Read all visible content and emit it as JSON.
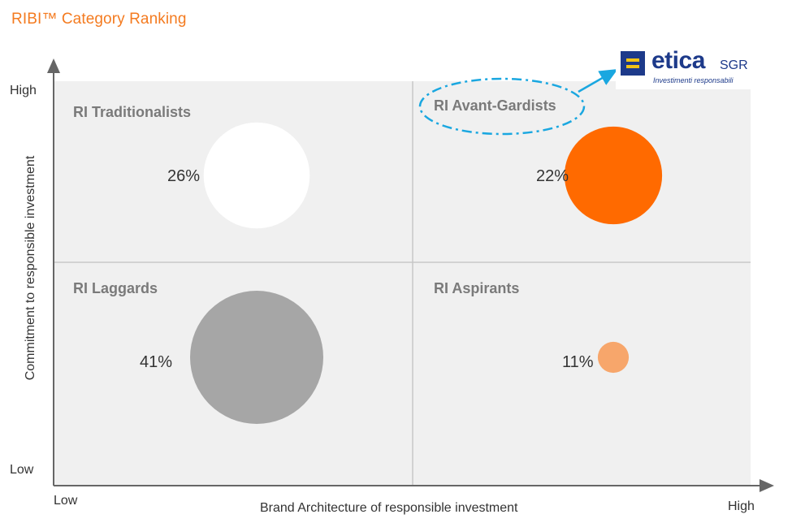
{
  "title": "RIBI™ Category Ranking",
  "colors": {
    "title": "#f47b20",
    "panel": "#f0f0f0",
    "divider": "#c8c8c8",
    "axis": "#666666",
    "highlight": "#1aa7e0"
  },
  "chart_data": {
    "type": "scatter",
    "xlabel": "Brand Architecture of responsible investment",
    "ylabel": "Commitment to responsible investment",
    "x_ticks": [
      "Low",
      "High"
    ],
    "y_ticks": [
      "Low",
      "High"
    ],
    "quadrants": [
      {
        "name": "RI Traditionalists",
        "x": "Low",
        "y": "High",
        "value": 26,
        "label": "26%",
        "color": "#ffffff"
      },
      {
        "name": "RI Avant-Gardists",
        "x": "High",
        "y": "High",
        "value": 22,
        "label": "22%",
        "color": "#ff6a00"
      },
      {
        "name": "RI Laggards",
        "x": "Low",
        "y": "Low",
        "value": 41,
        "label": "41%",
        "color": "#a6a6a6"
      },
      {
        "name": "RI Aspirants",
        "x": "High",
        "y": "Low",
        "value": 11,
        "label": "11%",
        "color": "#f7a66b"
      }
    ],
    "highlighted": "RI Avant-Gardists"
  },
  "logo": {
    "word": "etica",
    "suffix": "SGR",
    "tagline": "Investimenti responsabili"
  }
}
